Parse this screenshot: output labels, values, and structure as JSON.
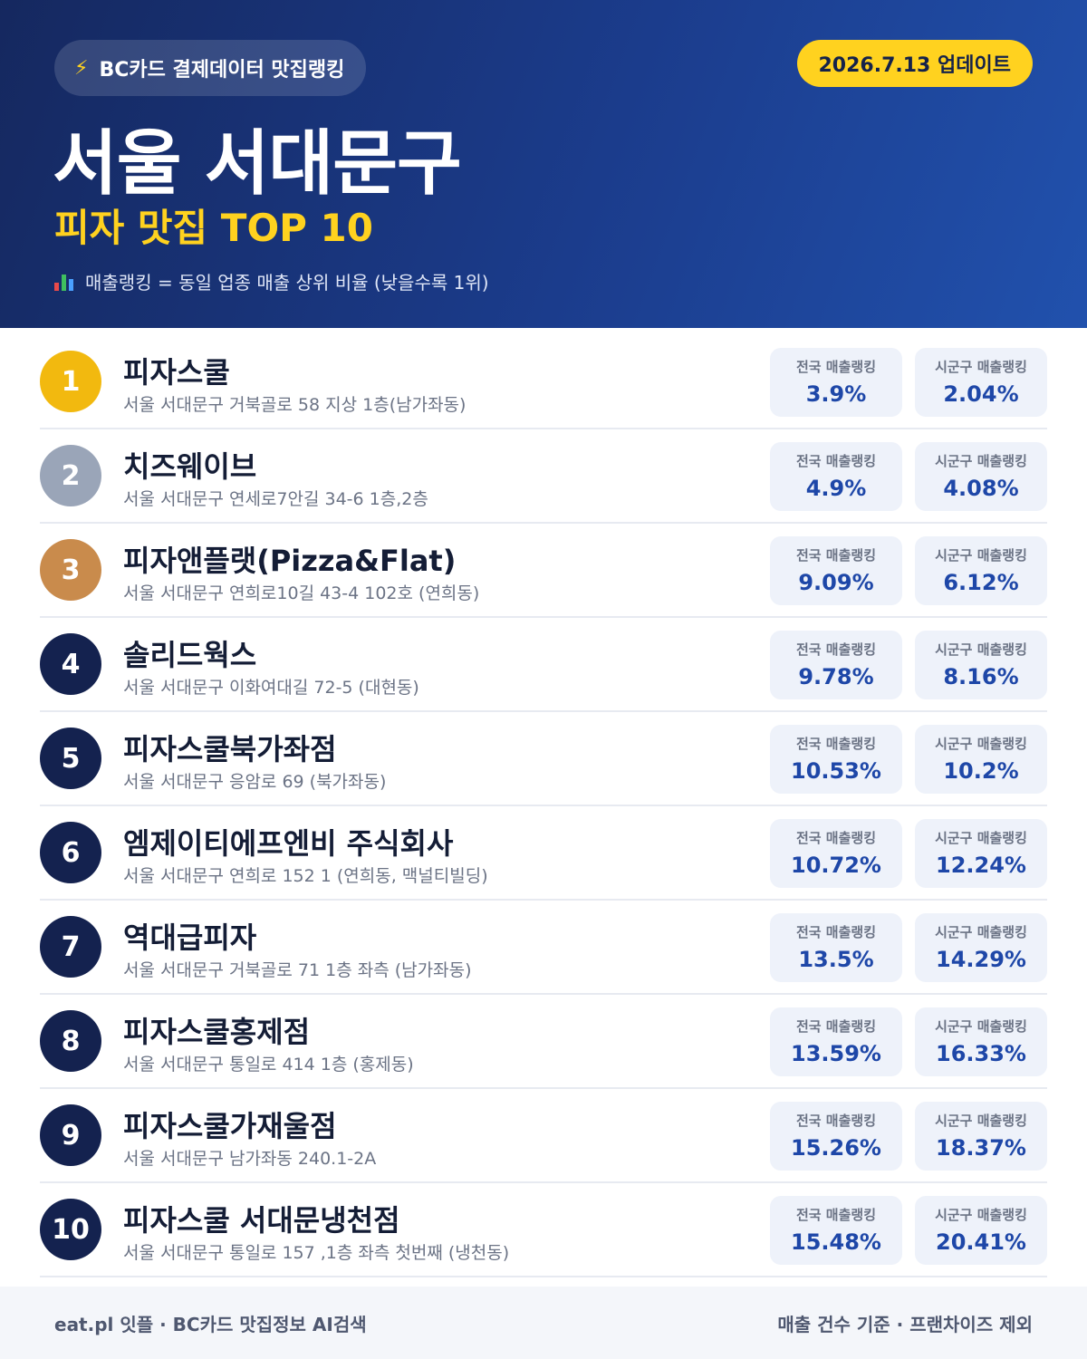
{
  "header": {
    "source_label": "BC카드 결제데이터 맛집랭킹",
    "update_label": "2026.7.13 업데이트",
    "title": "서울 서대문구",
    "subtitle": "피자 맛집 TOP 10",
    "legend": "매출랭킹 = 동일 업종 매출 상위 비율 (낮을수록 1위)",
    "accent_color": "#ffd21f",
    "bg_color": "#1b3c8c"
  },
  "stat_labels": {
    "national": "전국 매출랭킹",
    "district": "시군구 매출랭킹"
  },
  "rows": [
    {
      "rank": "1",
      "name": "피자스쿨",
      "address": "서울 서대문구 거북골로 58 지상 1층(남가좌동)",
      "national": "3.9%",
      "district": "2.04%"
    },
    {
      "rank": "2",
      "name": "치즈웨이브",
      "address": "서울 서대문구 연세로7안길 34-6 1층,2층",
      "national": "4.9%",
      "district": "4.08%"
    },
    {
      "rank": "3",
      "name": "피자앤플랫(Pizza&Flat)",
      "address": "서울 서대문구 연희로10길 43-4 102호 (연희동)",
      "national": "9.09%",
      "district": "6.12%"
    },
    {
      "rank": "4",
      "name": "솔리드웍스",
      "address": "서울 서대문구 이화여대길 72-5 (대현동)",
      "national": "9.78%",
      "district": "8.16%"
    },
    {
      "rank": "5",
      "name": "피자스쿨북가좌점",
      "address": "서울 서대문구 응암로 69 (북가좌동)",
      "national": "10.53%",
      "district": "10.2%"
    },
    {
      "rank": "6",
      "name": "엠제이티에프엔비 주식회사",
      "address": "서울 서대문구 연희로 152 1 (연희동, 맥널티빌딩)",
      "national": "10.72%",
      "district": "12.24%"
    },
    {
      "rank": "7",
      "name": "역대급피자",
      "address": "서울 서대문구 거북골로 71 1층 좌측 (남가좌동)",
      "national": "13.5%",
      "district": "14.29%"
    },
    {
      "rank": "8",
      "name": "피자스쿨홍제점",
      "address": "서울 서대문구 통일로 414 1층 (홍제동)",
      "national": "13.59%",
      "district": "16.33%"
    },
    {
      "rank": "9",
      "name": "피자스쿨가재울점",
      "address": "서울 서대문구 남가좌동 240.1-2A",
      "national": "15.26%",
      "district": "18.37%"
    },
    {
      "rank": "10",
      "name": "피자스쿨 서대문냉천점",
      "address": "서울 서대문구 통일로 157 ,1층 좌측 첫번째 (냉천동)",
      "national": "15.48%",
      "district": "20.41%"
    }
  ],
  "footer": {
    "left": "eat.pl 잇플 · BC카드 맛집정보 AI검색",
    "right": "매출 건수 기준 · 프랜차이즈 제외"
  }
}
